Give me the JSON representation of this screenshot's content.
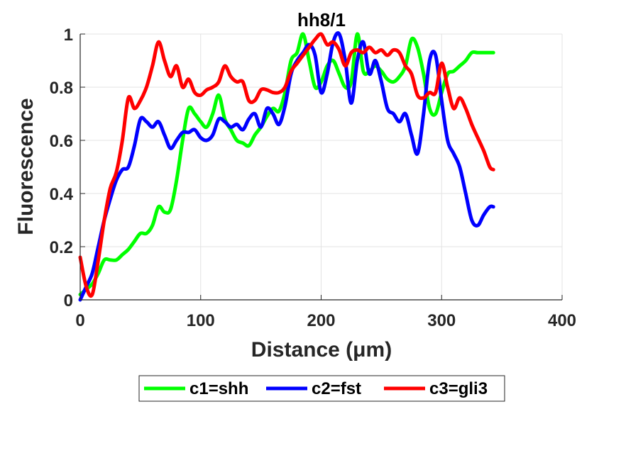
{
  "chart_data": {
    "type": "line",
    "title": "hh8/1",
    "xlabel": "Distance  (μm)",
    "ylabel": "Fluorescence",
    "xlim": [
      0,
      400
    ],
    "ylim": [
      0,
      1
    ],
    "xticks": [
      "0",
      "100",
      "200",
      "300",
      "400"
    ],
    "yticks": [
      "0",
      "0.2",
      "0.4",
      "0.6",
      "0.8",
      "1"
    ],
    "grid": true,
    "legend_position": "bottom-outside",
    "series": [
      {
        "name": "c1=shh",
        "color": "#00ff00",
        "x": [
          0,
          5,
          10,
          15,
          20,
          25,
          30,
          35,
          40,
          45,
          50,
          55,
          60,
          65,
          70,
          75,
          80,
          85,
          90,
          95,
          100,
          105,
          110,
          115,
          120,
          125,
          130,
          135,
          140,
          145,
          150,
          155,
          160,
          165,
          170,
          175,
          180,
          185,
          190,
          195,
          200,
          205,
          210,
          215,
          220,
          225,
          230,
          235,
          240,
          245,
          250,
          255,
          260,
          265,
          270,
          275,
          280,
          285,
          290,
          295,
          300,
          305,
          310,
          315,
          320,
          325,
          330,
          335,
          340,
          343
        ],
        "y": [
          0.02,
          0.04,
          0.06,
          0.1,
          0.15,
          0.15,
          0.15,
          0.17,
          0.19,
          0.22,
          0.25,
          0.25,
          0.28,
          0.35,
          0.33,
          0.34,
          0.45,
          0.6,
          0.72,
          0.7,
          0.67,
          0.65,
          0.7,
          0.77,
          0.68,
          0.64,
          0.6,
          0.59,
          0.58,
          0.62,
          0.65,
          0.69,
          0.72,
          0.71,
          0.78,
          0.9,
          0.93,
          1.0,
          0.9,
          0.8,
          0.82,
          0.88,
          0.9,
          0.85,
          0.8,
          0.82,
          1.0,
          0.86,
          0.86,
          0.88,
          0.86,
          0.83,
          0.82,
          0.84,
          0.88,
          0.98,
          0.95,
          0.85,
          0.72,
          0.7,
          0.78,
          0.85,
          0.86,
          0.88,
          0.9,
          0.93,
          0.93,
          0.93,
          0.93,
          0.93
        ]
      },
      {
        "name": "c2=fst",
        "color": "#0000ff",
        "x": [
          0,
          5,
          10,
          15,
          20,
          25,
          30,
          35,
          40,
          45,
          50,
          55,
          60,
          65,
          70,
          75,
          80,
          85,
          90,
          95,
          100,
          105,
          110,
          115,
          120,
          125,
          130,
          135,
          140,
          145,
          150,
          155,
          160,
          165,
          170,
          175,
          180,
          185,
          190,
          195,
          200,
          205,
          210,
          215,
          220,
          225,
          230,
          235,
          240,
          245,
          250,
          255,
          260,
          265,
          270,
          275,
          280,
          285,
          290,
          295,
          300,
          305,
          310,
          315,
          320,
          325,
          330,
          335,
          340,
          343
        ],
        "y": [
          0.0,
          0.05,
          0.1,
          0.2,
          0.3,
          0.38,
          0.45,
          0.49,
          0.5,
          0.58,
          0.68,
          0.67,
          0.65,
          0.67,
          0.62,
          0.57,
          0.6,
          0.63,
          0.63,
          0.64,
          0.61,
          0.6,
          0.62,
          0.68,
          0.67,
          0.65,
          0.66,
          0.64,
          0.68,
          0.7,
          0.65,
          0.72,
          0.7,
          0.66,
          0.73,
          0.85,
          0.9,
          0.93,
          0.96,
          0.92,
          0.78,
          0.85,
          0.97,
          1.0,
          0.9,
          0.74,
          0.9,
          0.97,
          0.85,
          0.9,
          0.82,
          0.72,
          0.7,
          0.67,
          0.7,
          0.62,
          0.55,
          0.7,
          0.9,
          0.92,
          0.75,
          0.6,
          0.55,
          0.5,
          0.4,
          0.3,
          0.28,
          0.32,
          0.35,
          0.35
        ]
      },
      {
        "name": "c3=gli3",
        "color": "#ff0000",
        "x": [
          0,
          5,
          10,
          15,
          20,
          25,
          30,
          35,
          40,
          45,
          50,
          55,
          60,
          65,
          70,
          75,
          80,
          85,
          90,
          95,
          100,
          105,
          110,
          115,
          120,
          125,
          130,
          135,
          140,
          145,
          150,
          155,
          160,
          165,
          170,
          175,
          180,
          185,
          190,
          195,
          200,
          205,
          210,
          215,
          220,
          225,
          230,
          235,
          240,
          245,
          250,
          255,
          260,
          265,
          270,
          275,
          280,
          285,
          290,
          295,
          300,
          305,
          310,
          315,
          320,
          325,
          330,
          335,
          340,
          343
        ],
        "y": [
          0.16,
          0.05,
          0.02,
          0.15,
          0.3,
          0.42,
          0.48,
          0.6,
          0.76,
          0.72,
          0.75,
          0.8,
          0.88,
          0.97,
          0.9,
          0.84,
          0.88,
          0.8,
          0.83,
          0.78,
          0.77,
          0.79,
          0.8,
          0.82,
          0.88,
          0.84,
          0.82,
          0.82,
          0.75,
          0.75,
          0.79,
          0.79,
          0.78,
          0.78,
          0.8,
          0.86,
          0.89,
          0.92,
          0.95,
          0.98,
          1.0,
          0.96,
          0.97,
          0.94,
          0.88,
          0.93,
          0.94,
          0.93,
          0.95,
          0.93,
          0.94,
          0.92,
          0.94,
          0.93,
          0.88,
          0.85,
          0.77,
          0.76,
          0.78,
          0.78,
          0.89,
          0.8,
          0.72,
          0.76,
          0.72,
          0.66,
          0.61,
          0.56,
          0.5,
          0.49
        ]
      }
    ]
  }
}
